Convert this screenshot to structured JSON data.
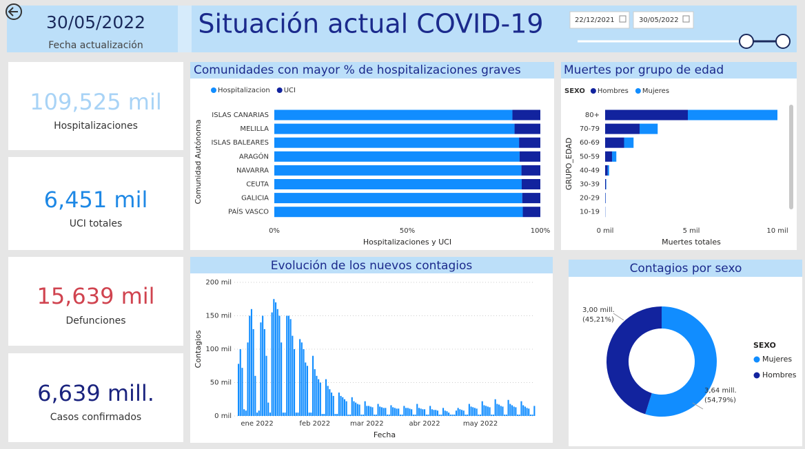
{
  "header": {
    "date": "30/05/2022",
    "date_label": "Fecha actualización",
    "title": "Situación actual COVID-19",
    "date_from": "22/12/2021",
    "date_to": "30/05/2022"
  },
  "kpis": [
    {
      "value": "109,525 mil",
      "label": "Hospitalizaciones",
      "color": "#a8d3f6"
    },
    {
      "value": "6,451 mil",
      "label": "UCI totales",
      "color": "#1e88e5"
    },
    {
      "value": "15,639 mil",
      "label": "Defunciones",
      "color": "#d0434f"
    },
    {
      "value": "6,639 mill.",
      "label": "Casos confirmados",
      "color": "#1a237e"
    }
  ],
  "chart_data": [
    {
      "type": "bar",
      "orientation": "horizontal",
      "stacked": true,
      "title": "Comunidades con mayor % de hospitalizaciones graves",
      "x_label": "Hospitalizaciones y UCI",
      "y_label": "Comunidad Autónoma",
      "categories": [
        "ISLAS CANARIAS",
        "MELILLA",
        "ISLAS BALEARES",
        "ARAGÓN",
        "NAVARRA",
        "CEUTA",
        "GALICIA",
        "PAÍS VASCO"
      ],
      "series": [
        {
          "name": "Hospitalizacion",
          "color": "#118dff",
          "values": [
            89.5,
            90.3,
            92.0,
            92.2,
            92.9,
            93.0,
            93.2,
            93.4
          ]
        },
        {
          "name": "UCI",
          "color": "#12239e",
          "values": [
            10.5,
            9.7,
            8.0,
            7.8,
            7.1,
            7.0,
            6.8,
            6.6
          ]
        }
      ],
      "xlim": [
        0,
        100
      ],
      "xticks": [
        {
          "value": 0,
          "label": "0%"
        },
        {
          "value": 50,
          "label": "50%"
        },
        {
          "value": 100,
          "label": "100%"
        }
      ],
      "legend": "top-left"
    },
    {
      "type": "bar",
      "orientation": "horizontal",
      "stacked": true,
      "title": "Muertes por grupo de edad",
      "x_label": "Muertes totales",
      "y_label": "GRUPO_EDAD",
      "legend_title": "SEXO",
      "categories": [
        "80+",
        "70-79",
        "60-69",
        "50-59",
        "40-49",
        "30-39",
        "20-29",
        "10-19"
      ],
      "series": [
        {
          "name": "Hombres",
          "color": "#12239e",
          "values": [
            4.8,
            2.0,
            1.1,
            0.4,
            0.15,
            0.05,
            0.02,
            0.01
          ]
        },
        {
          "name": "Mujeres",
          "color": "#118dff",
          "values": [
            5.2,
            1.05,
            0.55,
            0.25,
            0.08,
            0.02,
            0.01,
            0.005
          ]
        }
      ],
      "xlim": [
        0,
        10.5
      ],
      "xticks": [
        {
          "value": 0,
          "label": "0 mil"
        },
        {
          "value": 5,
          "label": "5 mil"
        },
        {
          "value": 10,
          "label": "10 mil"
        }
      ],
      "legend": "top-left"
    },
    {
      "type": "bar",
      "orientation": "vertical",
      "title": "Evolución de los nuevos contagios",
      "x_label": "Fecha",
      "y_label": "Contagios",
      "color": "#118dff",
      "grid": true,
      "categories": [
        null,
        null,
        null,
        null,
        null,
        null,
        null,
        null,
        null,
        null,
        "ene 2022",
        null,
        null,
        null,
        null,
        null,
        null,
        null,
        null,
        null,
        null,
        null,
        null,
        null,
        null,
        null,
        null,
        null,
        null,
        null,
        null,
        null,
        null,
        null,
        null,
        null,
        null,
        null,
        null,
        null,
        null,
        "feb 2022",
        null,
        null,
        null,
        null,
        null,
        null,
        null,
        null,
        null,
        null,
        null,
        null,
        null,
        null,
        null,
        null,
        null,
        null,
        null,
        null,
        null,
        null,
        null,
        null,
        null,
        null,
        null,
        "mar 2022",
        null,
        null,
        null,
        null,
        null,
        null,
        null,
        null,
        null,
        null,
        null,
        null,
        null,
        null,
        null,
        null,
        null,
        null,
        null,
        null,
        null,
        null,
        null,
        null,
        null,
        null,
        null,
        null,
        null,
        null,
        "abr 2022",
        null,
        null,
        null,
        null,
        null,
        null,
        null,
        null,
        null,
        null,
        null,
        null,
        null,
        null,
        null,
        null,
        null,
        null,
        null,
        null,
        null,
        null,
        null,
        null,
        null,
        null,
        null,
        null,
        null,
        "may 2022",
        null,
        null,
        null,
        null,
        null,
        null,
        null,
        null,
        null,
        null,
        null,
        null,
        null,
        null,
        null,
        null,
        null,
        null,
        null,
        null,
        null,
        null,
        null,
        null,
        null,
        null,
        null,
        null,
        null
      ],
      "values": [
        78,
        100,
        72,
        10,
        8,
        110,
        150,
        160,
        130,
        60,
        5,
        8,
        140,
        150,
        130,
        90,
        20,
        5,
        155,
        175,
        170,
        160,
        150,
        110,
        5,
        5,
        150,
        150,
        145,
        120,
        100,
        5,
        5,
        115,
        110,
        100,
        80,
        75,
        5,
        5,
        90,
        70,
        60,
        55,
        50,
        3,
        3,
        55,
        45,
        40,
        35,
        30,
        3,
        3,
        35,
        30,
        28,
        25,
        22,
        2,
        2,
        28,
        22,
        20,
        18,
        17,
        2,
        2,
        22,
        15,
        15,
        14,
        13,
        2,
        2,
        18,
        14,
        13,
        12,
        12,
        2,
        2,
        16,
        13,
        12,
        11,
        11,
        2,
        2,
        15,
        12,
        12,
        11,
        10,
        2,
        2,
        18,
        12,
        11,
        10,
        10,
        2,
        2,
        15,
        10,
        9,
        9,
        8,
        2,
        2,
        12,
        8,
        7,
        5,
        2,
        2,
        2,
        8,
        12,
        10,
        9,
        8,
        2,
        2,
        18,
        14,
        13,
        12,
        11,
        2,
        2,
        22,
        16,
        15,
        14,
        13,
        2,
        2,
        25,
        18,
        17,
        15,
        14,
        2,
        2,
        24,
        18,
        16,
        14,
        13,
        2,
        2,
        22,
        16,
        14,
        12,
        11,
        2,
        2,
        15
      ],
      "ylim": [
        0,
        200
      ],
      "yticks": [
        {
          "value": 0,
          "label": "0 mil"
        },
        {
          "value": 50,
          "label": "50 mil"
        },
        {
          "value": 100,
          "label": "100 mil"
        },
        {
          "value": 150,
          "label": "150 mil"
        },
        {
          "value": 200,
          "label": "200 mil"
        }
      ]
    },
    {
      "type": "pie",
      "donut": true,
      "title": "Contagios por sexo",
      "legend_title": "SEXO",
      "categories": [
        "Mujeres",
        "Hombres"
      ],
      "colors": [
        "#118dff",
        "#12239e"
      ],
      "values": [
        3.64,
        3.0
      ],
      "value_labels": [
        "3,64 mill.",
        "3,00 mill."
      ],
      "percents": [
        54.79,
        45.21
      ],
      "percent_labels": [
        "(54,79%)",
        "(45,21%)"
      ],
      "legend": "right"
    }
  ]
}
